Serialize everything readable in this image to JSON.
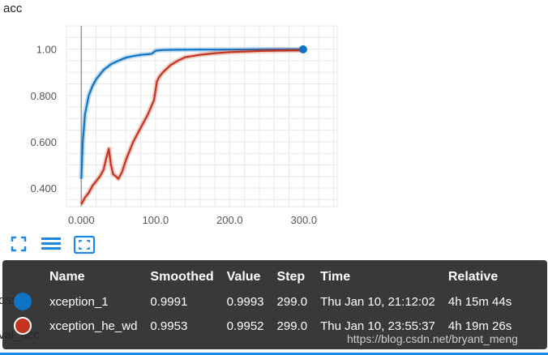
{
  "card_title": "acc",
  "background_labels": {
    "loss_partial": "oss",
    "val_acc_partial": "val_acc"
  },
  "toolbar": {
    "buttons": [
      {
        "name": "fit-domain-button",
        "icon": "expand-icon"
      },
      {
        "name": "toggle-log-button",
        "icon": "list-icon"
      },
      {
        "name": "fit-to-data-button",
        "icon": "fit-screen-icon"
      }
    ]
  },
  "colors": {
    "xception_1": "#0f74c4",
    "xception_he_wd": "#c4331d",
    "accent": "#1e88e5"
  },
  "chart_data": {
    "type": "line",
    "title": "acc",
    "xlabel": "",
    "ylabel": "",
    "xlim": [
      -20,
      345
    ],
    "ylim": [
      0.32,
      1.1
    ],
    "x_ticks": [
      0,
      100,
      200,
      300
    ],
    "x_tick_labels": [
      "0.000",
      "100.0",
      "200.0",
      "300.0"
    ],
    "y_ticks": [
      0.4,
      0.6,
      0.8,
      1.0
    ],
    "y_tick_labels": [
      "0.400",
      "0.600",
      "0.800",
      "1.00"
    ],
    "grid": true,
    "series": [
      {
        "name": "xception_1",
        "color": "#0f74c4",
        "x": [
          0,
          2,
          5,
          10,
          15,
          20,
          30,
          40,
          50,
          60,
          70,
          80,
          90,
          95,
          100,
          110,
          130,
          160,
          200,
          250,
          299
        ],
        "y": [
          0.44,
          0.6,
          0.72,
          0.8,
          0.84,
          0.87,
          0.91,
          0.935,
          0.95,
          0.963,
          0.97,
          0.975,
          0.978,
          0.98,
          0.993,
          0.996,
          0.997,
          0.998,
          0.998,
          0.999,
          0.999
        ]
      },
      {
        "name": "xception_he_wd",
        "color": "#c4331d",
        "x": [
          0,
          5,
          10,
          15,
          20,
          25,
          30,
          33,
          37,
          40,
          43,
          47,
          50,
          55,
          60,
          70,
          80,
          90,
          98,
          100,
          102,
          105,
          110,
          120,
          130,
          140,
          160,
          180,
          200,
          250,
          299
        ],
        "y": [
          0.33,
          0.36,
          0.38,
          0.41,
          0.43,
          0.45,
          0.48,
          0.52,
          0.57,
          0.5,
          0.46,
          0.45,
          0.44,
          0.47,
          0.52,
          0.6,
          0.66,
          0.72,
          0.78,
          0.82,
          0.86,
          0.88,
          0.9,
          0.93,
          0.95,
          0.965,
          0.975,
          0.982,
          0.987,
          0.993,
          0.995
        ]
      }
    ],
    "legend": "tooltip-bottom"
  },
  "tooltip": {
    "headers": [
      "Name",
      "Smoothed",
      "Value",
      "Step",
      "Time",
      "Relative"
    ],
    "rows": [
      {
        "name": "xception_1",
        "smoothed": "0.9991",
        "value": "0.9993",
        "step": "299.0",
        "time": "Thu Jan 10, 21:12:02",
        "relative": "4h 15m 44s"
      },
      {
        "name": "xception_he_wd",
        "smoothed": "0.9953",
        "value": "0.9952",
        "step": "299.0",
        "time": "Thu Jan 10, 23:55:37",
        "relative": "4h 19m 26s"
      }
    ]
  },
  "watermark": "https://blog.csdn.net/bryant_meng"
}
